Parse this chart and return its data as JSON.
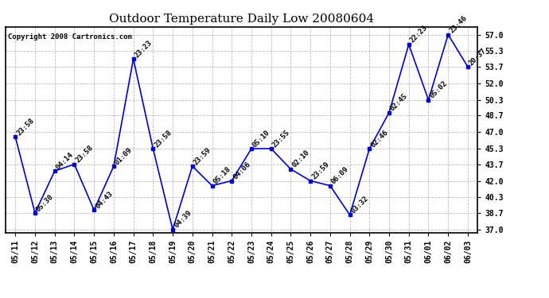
{
  "title": "Outdoor Temperature Daily Low 20080604",
  "copyright": "Copyright 2008 Cartronics.com",
  "x_labels": [
    "05/11",
    "05/12",
    "05/13",
    "05/14",
    "05/15",
    "05/16",
    "05/17",
    "05/18",
    "05/19",
    "05/20",
    "05/21",
    "05/22",
    "05/23",
    "05/24",
    "05/25",
    "05/26",
    "05/27",
    "05/28",
    "05/29",
    "05/30",
    "05/31",
    "06/01",
    "06/02",
    "06/03"
  ],
  "y_values": [
    46.5,
    38.7,
    43.0,
    43.7,
    39.0,
    43.5,
    54.5,
    45.3,
    37.0,
    43.5,
    41.5,
    42.0,
    45.3,
    45.3,
    43.2,
    42.0,
    41.5,
    38.5,
    45.3,
    49.0,
    56.0,
    50.3,
    57.0,
    53.7
  ],
  "point_labels": [
    "23:58",
    "05:30",
    "04:14",
    "23:58",
    "04:43",
    "01:09",
    "23:23",
    "23:58",
    "04:39",
    "23:59",
    "05:18",
    "04:06",
    "05:10",
    "23:55",
    "02:10",
    "23:59",
    "06:09",
    "03:32",
    "02:46",
    "02:45",
    "22:23",
    "05:02",
    "23:46",
    "20:37"
  ],
  "line_color": "#0000CC",
  "marker_color": "#0000CC",
  "background_color": "#ffffff",
  "grid_color": "#bbbbbb",
  "title_fontsize": 11,
  "label_fontsize": 6.5,
  "tick_fontsize": 7,
  "copyright_fontsize": 6.5,
  "y_min": 37.0,
  "y_max": 57.0,
  "y_ticks": [
    37.0,
    38.7,
    40.3,
    42.0,
    43.7,
    45.3,
    47.0,
    48.7,
    50.3,
    52.0,
    53.7,
    55.3,
    57.0
  ]
}
